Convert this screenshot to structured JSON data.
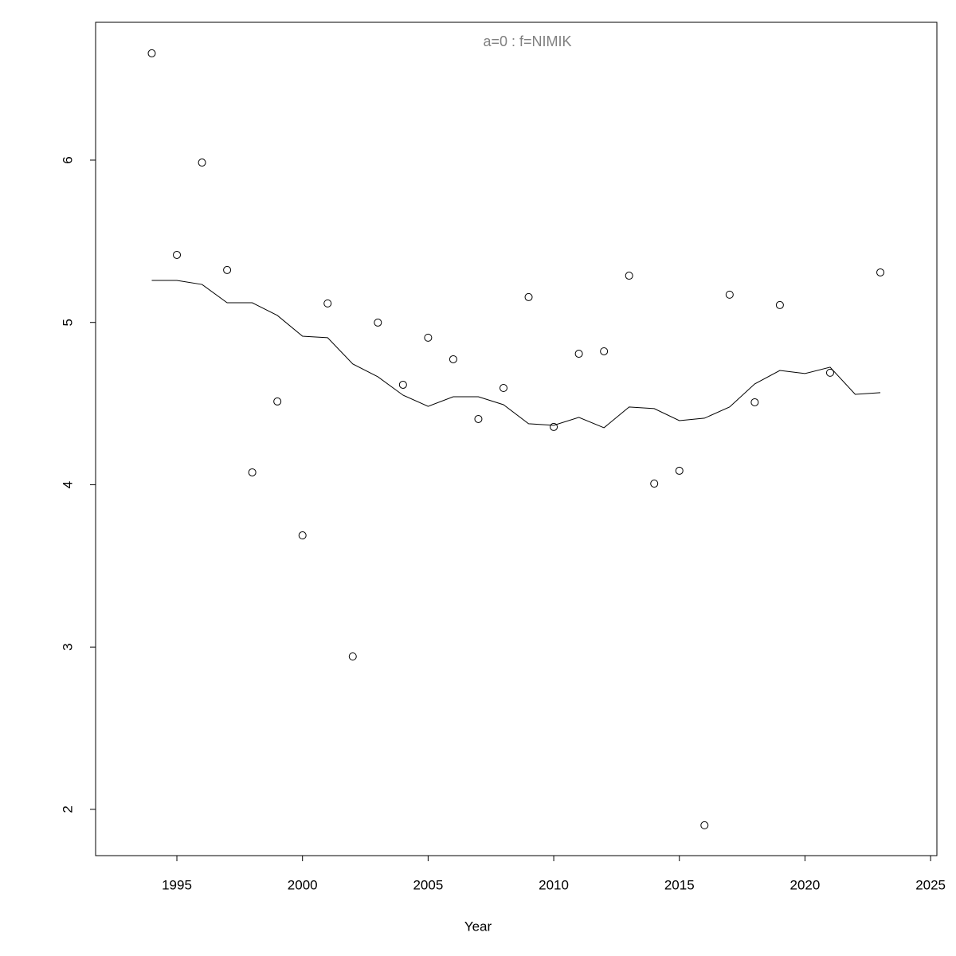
{
  "chart_data": {
    "type": "scatter",
    "title": "a=0  :  f=NIMIK",
    "x_label": "Year",
    "x": [
      1994,
      1995,
      1996,
      1997,
      1998,
      1999,
      2000,
      2001,
      2002,
      2003,
      2004,
      2005,
      2006,
      2007,
      2008,
      2009,
      2010,
      2011,
      2012,
      2013,
      2014,
      2015,
      2016,
      2017,
      2018,
      2019,
      2020,
      2021,
      2022,
      2023
    ],
    "values": [
      6.658,
      5.416,
      5.985,
      5.323,
      4.076,
      4.513,
      3.688,
      5.117,
      2.942,
      4.999,
      4.616,
      4.906,
      4.773,
      4.405,
      4.596,
      5.156,
      4.356,
      4.807,
      4.822,
      5.288,
      4.007,
      4.086,
      1.902,
      5.171,
      4.508,
      5.107,
      null,
      4.69,
      null,
      5.308
    ],
    "line_values": [
      5.259,
      5.259,
      5.234,
      5.121,
      5.121,
      5.043,
      4.915,
      4.906,
      4.744,
      4.665,
      4.552,
      4.483,
      4.542,
      4.542,
      4.493,
      4.376,
      4.366,
      4.415,
      4.351,
      4.479,
      4.469,
      4.395,
      4.41,
      4.479,
      4.621,
      4.704,
      4.685,
      4.724,
      4.557,
      4.567
    ],
    "color": "#000000",
    "xlim": [
      1991.765,
      2025.25
    ],
    "xticks": [
      1995,
      2000,
      2005,
      2010,
      2015,
      2020,
      2025
    ],
    "ylim": [
      1.715,
      6.849
    ],
    "yticks": [
      2,
      3,
      4,
      5,
      6
    ]
  }
}
